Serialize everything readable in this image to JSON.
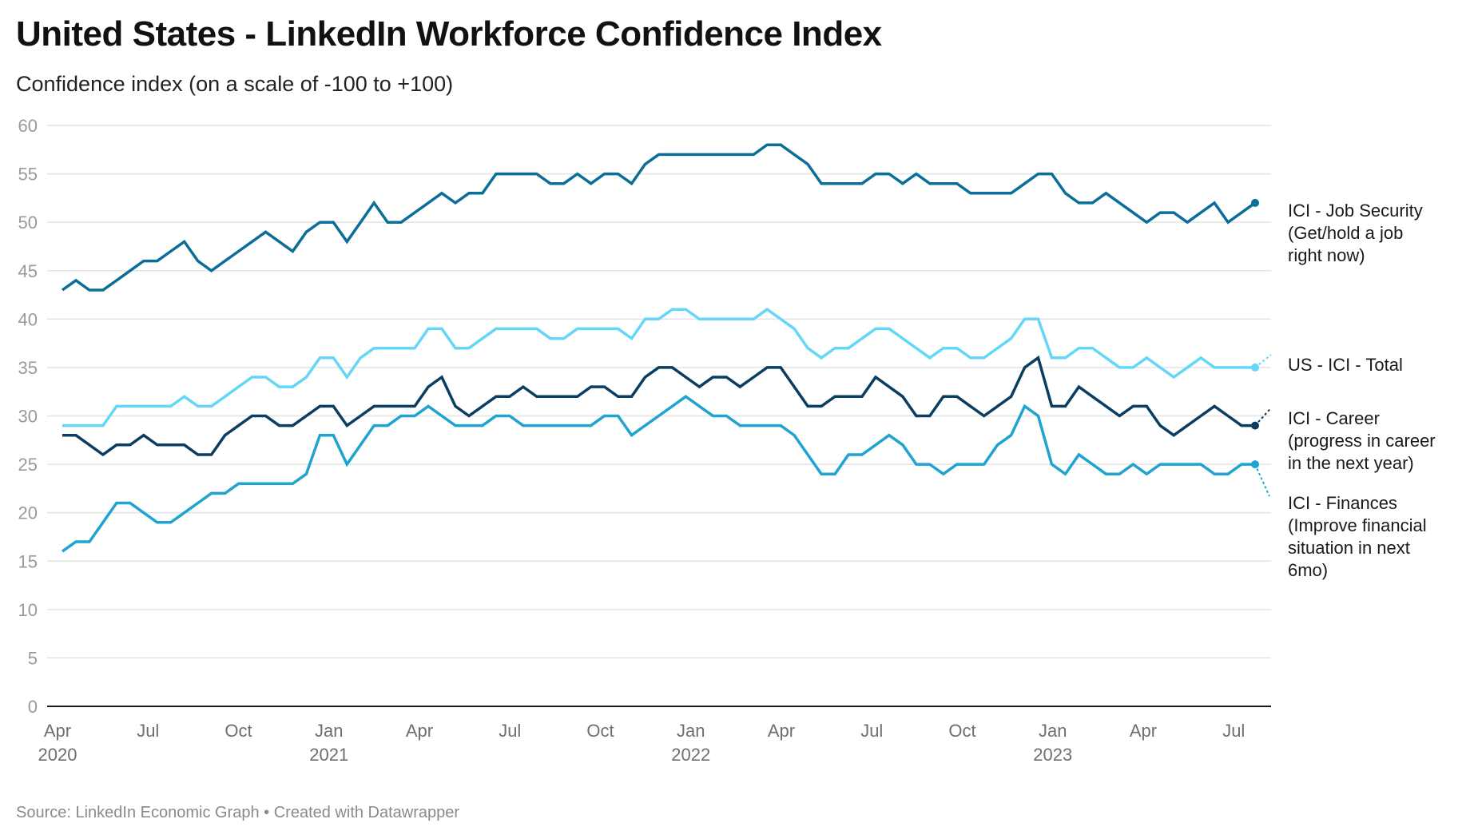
{
  "header": {
    "title": "United States - LinkedIn Workforce Confidence Index",
    "subtitle": "Confidence index (on a scale of -100 to +100)"
  },
  "footer": {
    "source": "Source: LinkedIn Economic Graph • Created with Datawrapper"
  },
  "chart_data": {
    "type": "line",
    "title": "United States - LinkedIn Workforce Confidence Index",
    "subtitle": "Confidence index (on a scale of -100 to +100)",
    "xlabel": "",
    "ylabel": "",
    "ylim": [
      0,
      60
    ],
    "yticks": [
      0,
      5,
      10,
      15,
      20,
      25,
      30,
      35,
      40,
      45,
      50,
      55,
      60
    ],
    "grid": true,
    "legend_placement": "right (direct labels at line ends)",
    "x_start": "2020-04",
    "x_end": "2023-08",
    "x_interval": "biweekly",
    "xticks": [
      {
        "label": "Apr",
        "year": "2020",
        "month_index": 0
      },
      {
        "label": "Jul",
        "year": "",
        "month_index": 3
      },
      {
        "label": "Oct",
        "year": "",
        "month_index": 6
      },
      {
        "label": "Jan",
        "year": "2021",
        "month_index": 9
      },
      {
        "label": "Apr",
        "year": "",
        "month_index": 12
      },
      {
        "label": "Jul",
        "year": "",
        "month_index": 15
      },
      {
        "label": "Oct",
        "year": "",
        "month_index": 18
      },
      {
        "label": "Jan",
        "year": "2022",
        "month_index": 21
      },
      {
        "label": "Apr",
        "year": "",
        "month_index": 24
      },
      {
        "label": "Jul",
        "year": "",
        "month_index": 27
      },
      {
        "label": "Oct",
        "year": "",
        "month_index": 30
      },
      {
        "label": "Jan",
        "year": "2023",
        "month_index": 33
      },
      {
        "label": "Apr",
        "year": "",
        "month_index": 36
      },
      {
        "label": "Jul",
        "year": "",
        "month_index": 39
      }
    ],
    "series": [
      {
        "name": "ICI - Job Security (Get/hold a job right now)",
        "label_lines": [
          "ICI - Job Security",
          "(Get/hold a job",
          "right now)"
        ],
        "color": "#0b6e99",
        "values": [
          43,
          44,
          43,
          43,
          44,
          45,
          46,
          46,
          47,
          48,
          46,
          45,
          46,
          47,
          48,
          49,
          48,
          47,
          49,
          50,
          50,
          48,
          50,
          52,
          50,
          50,
          51,
          52,
          53,
          52,
          53,
          53,
          55,
          55,
          55,
          55,
          54,
          54,
          55,
          54,
          55,
          55,
          54,
          56,
          57,
          57,
          57,
          57,
          57,
          57,
          57,
          57,
          58,
          58,
          57,
          56,
          54,
          54,
          54,
          54,
          55,
          55,
          54,
          55,
          54,
          54,
          54,
          53,
          53,
          53,
          53,
          54,
          55,
          55,
          53,
          52,
          52,
          53,
          52,
          51,
          50,
          51,
          51,
          50,
          51,
          52,
          50,
          51,
          52
        ]
      },
      {
        "name": "US - ICI - Total",
        "label_lines": [
          "US - ICI - Total"
        ],
        "color": "#64d6f7",
        "values": [
          29,
          29,
          29,
          29,
          31,
          31,
          31,
          31,
          31,
          32,
          31,
          31,
          32,
          33,
          34,
          34,
          33,
          33,
          34,
          36,
          36,
          34,
          36,
          37,
          37,
          37,
          37,
          39,
          39,
          37,
          37,
          38,
          39,
          39,
          39,
          39,
          38,
          38,
          39,
          39,
          39,
          39,
          38,
          40,
          40,
          41,
          41,
          40,
          40,
          40,
          40,
          40,
          41,
          40,
          39,
          37,
          36,
          37,
          37,
          38,
          39,
          39,
          38,
          37,
          36,
          37,
          37,
          36,
          36,
          37,
          38,
          40,
          40,
          36,
          36,
          37,
          37,
          36,
          35,
          35,
          36,
          35,
          34,
          35,
          36,
          35,
          35,
          35,
          35
        ]
      },
      {
        "name": "ICI - Career (progress in career in the next year)",
        "label_lines": [
          "ICI - Career",
          "(progress in career",
          "in the next year)"
        ],
        "color": "#0a3d62",
        "values": [
          28,
          28,
          27,
          26,
          27,
          27,
          28,
          27,
          27,
          27,
          26,
          26,
          28,
          29,
          30,
          30,
          29,
          29,
          30,
          31,
          31,
          29,
          30,
          31,
          31,
          31,
          31,
          33,
          34,
          31,
          30,
          31,
          32,
          32,
          33,
          32,
          32,
          32,
          32,
          33,
          33,
          32,
          32,
          34,
          35,
          35,
          34,
          33,
          34,
          34,
          33,
          34,
          35,
          35,
          33,
          31,
          31,
          32,
          32,
          32,
          34,
          33,
          32,
          30,
          30,
          32,
          32,
          31,
          30,
          31,
          32,
          35,
          36,
          31,
          31,
          33,
          32,
          31,
          30,
          31,
          31,
          29,
          28,
          29,
          30,
          31,
          30,
          29,
          29
        ]
      },
      {
        "name": "ICI - Finances (Improve financial situation in next 6mo)",
        "label_lines": [
          "ICI - Finances",
          "(Improve financial",
          "situation in next",
          "6mo)"
        ],
        "color": "#1ea4cf",
        "values": [
          16,
          17,
          17,
          19,
          21,
          21,
          20,
          19,
          19,
          20,
          21,
          22,
          22,
          23,
          23,
          23,
          23,
          23,
          24,
          28,
          28,
          25,
          27,
          29,
          29,
          30,
          30,
          31,
          30,
          29,
          29,
          29,
          30,
          30,
          29,
          29,
          29,
          29,
          29,
          29,
          30,
          30,
          28,
          29,
          30,
          31,
          32,
          31,
          30,
          30,
          29,
          29,
          29,
          29,
          28,
          26,
          24,
          24,
          26,
          26,
          27,
          28,
          27,
          25,
          25,
          24,
          25,
          25,
          25,
          27,
          28,
          31,
          30,
          25,
          24,
          26,
          25,
          24,
          24,
          25,
          24,
          25,
          25,
          25,
          25,
          24,
          24,
          25,
          25
        ]
      }
    ]
  }
}
